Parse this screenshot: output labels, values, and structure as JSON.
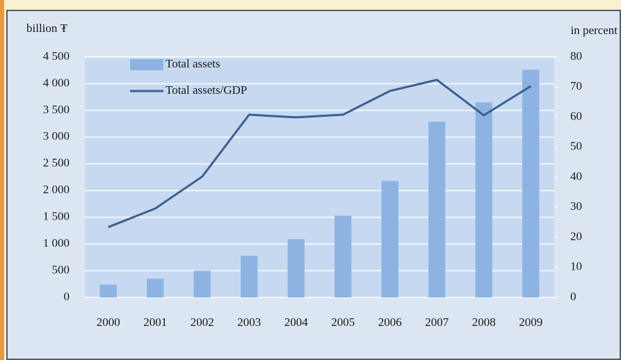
{
  "chart_data": {
    "type": "bar-line",
    "y_label": "billion ₮",
    "y2_label": "in percent",
    "categories": [
      "2000",
      "2001",
      "2002",
      "2003",
      "2004",
      "2005",
      "2006",
      "2007",
      "2008",
      "2009"
    ],
    "series": [
      {
        "name": "Total assets",
        "color": "#8db3e2",
        "values": [
          240,
          350,
          500,
          780,
          1090,
          1530,
          2180,
          3290,
          3650,
          4260
        ]
      },
      {
        "name": "Total assets/GDP",
        "color": "#3b5f8f",
        "axis": "y2",
        "values": [
          23.4,
          29.6,
          40.2,
          60.8,
          59.9,
          60.8,
          68.7,
          72.4,
          60.6,
          70.3
        ]
      }
    ],
    "ylim": [
      0,
      4500
    ],
    "yticks": [
      0,
      500,
      {
        "value": 1000,
        "label": "1 000"
      },
      {
        "value": 1500,
        "label": "1 500"
      },
      {
        "value": 2000,
        "label": "2 000"
      },
      {
        "value": 2500,
        "label": "2 500"
      },
      {
        "value": 3000,
        "label": "3 000"
      },
      {
        "value": 3500,
        "label": "3 500"
      },
      {
        "value": 4000,
        "label": "4 000"
      },
      {
        "value": 4500,
        "label": "4 500"
      }
    ],
    "y2lim": [
      0,
      80
    ],
    "y2ticks": [
      0,
      10,
      20,
      30,
      40,
      50,
      60,
      70,
      80
    ],
    "grid": true
  }
}
